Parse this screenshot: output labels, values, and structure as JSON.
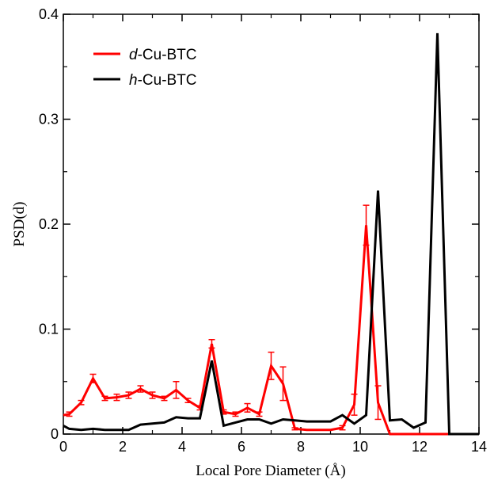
{
  "chart_data": {
    "type": "line",
    "xlabel": "Local Pore Diameter (Å)",
    "ylabel": "PSD(d)",
    "xlim": [
      0,
      14
    ],
    "ylim": [
      0,
      0.4
    ],
    "xticks": [
      0,
      2,
      4,
      6,
      8,
      10,
      12,
      14
    ],
    "yticks": [
      0,
      0.1,
      0.2,
      0.3,
      0.4
    ],
    "xtick_labels": [
      "0",
      "2",
      "4",
      "6",
      "8",
      "10",
      "12",
      "14"
    ],
    "ytick_labels": [
      "0",
      "0.1",
      "0.2",
      "0.3",
      "0.4"
    ],
    "grid": false,
    "legend": "top-left",
    "series": [
      {
        "name": "d-Cu-BTC",
        "name_italic": "d",
        "name_rest": "-Cu-BTC",
        "color": "#ff0000",
        "x": [
          0,
          0.2,
          0.6,
          1.0,
          1.4,
          1.8,
          2.2,
          2.6,
          3.0,
          3.4,
          3.8,
          4.2,
          4.6,
          5.0,
          5.4,
          5.8,
          6.2,
          6.6,
          7.0,
          7.4,
          7.8,
          8.2,
          8.6,
          9.0,
          9.4,
          9.8,
          10.2,
          10.6,
          11.0,
          11.4,
          11.8,
          12.2,
          12.6,
          13.0,
          13.4,
          13.8,
          14.0
        ],
        "y": [
          0.018,
          0.019,
          0.03,
          0.053,
          0.034,
          0.035,
          0.037,
          0.043,
          0.037,
          0.034,
          0.042,
          0.032,
          0.025,
          0.086,
          0.021,
          0.019,
          0.025,
          0.019,
          0.065,
          0.048,
          0.005,
          0.004,
          0.004,
          0.004,
          0.006,
          0.028,
          0.199,
          0.03,
          0.0,
          0.0,
          0.0,
          0.0,
          0.0,
          0.0,
          0.0,
          0.0,
          0.0
        ],
        "err": [
          0,
          0.002,
          0.002,
          0.004,
          0.002,
          0.003,
          0.003,
          0.003,
          0.003,
          0.002,
          0.008,
          0.002,
          0.002,
          0.004,
          0.002,
          0.002,
          0.004,
          0.002,
          0.013,
          0.016,
          0.001,
          0,
          0,
          0,
          0.002,
          0.01,
          0.019,
          0.016,
          0,
          0,
          0,
          0,
          0,
          0,
          0,
          0,
          0
        ]
      },
      {
        "name": "h-Cu-BTC",
        "name_italic": "h",
        "name_rest": "-Cu-BTC",
        "color": "#000000",
        "x": [
          0,
          0.2,
          0.6,
          1.0,
          1.4,
          1.8,
          2.2,
          2.6,
          3.0,
          3.4,
          3.8,
          4.2,
          4.6,
          5.0,
          5.4,
          5.8,
          6.2,
          6.6,
          7.0,
          7.4,
          7.8,
          8.2,
          8.6,
          9.0,
          9.4,
          9.8,
          10.2,
          10.6,
          11.0,
          11.4,
          11.8,
          12.2,
          12.6,
          13.0,
          13.4,
          13.8,
          14.0
        ],
        "y": [
          0.008,
          0.005,
          0.004,
          0.005,
          0.004,
          0.004,
          0.004,
          0.009,
          0.01,
          0.011,
          0.016,
          0.015,
          0.015,
          0.07,
          0.008,
          0.011,
          0.014,
          0.014,
          0.01,
          0.014,
          0.013,
          0.012,
          0.012,
          0.012,
          0.018,
          0.01,
          0.018,
          0.232,
          0.013,
          0.014,
          0.006,
          0.011,
          0.382,
          0.0,
          0.0,
          0.0,
          0.0
        ]
      }
    ]
  }
}
